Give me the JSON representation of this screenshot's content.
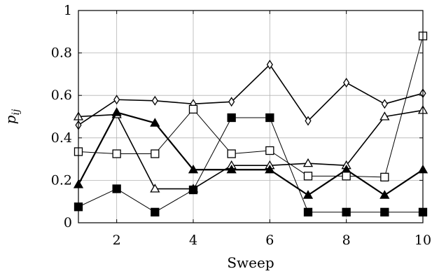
{
  "chart_data": {
    "type": "line",
    "title": "",
    "xlabel": "Sweep",
    "ylabel": "p",
    "ylabel_subscript": "ij",
    "xlim": [
      1,
      10
    ],
    "ylim": [
      0,
      1
    ],
    "x_ticks": [
      2,
      4,
      6,
      8,
      10
    ],
    "x_tick_labels": [
      "2",
      "4",
      "6",
      "8",
      "10"
    ],
    "y_ticks": [
      0,
      0.2,
      0.4,
      0.6,
      0.8,
      1
    ],
    "y_tick_labels": [
      "0",
      "0.2",
      "0.4",
      "0.6",
      "0.8",
      "1"
    ],
    "grid": true,
    "legend": "none",
    "colors": {
      "line": "#000000",
      "grid": "#b3b3b3",
      "fill": "#000000",
      "hollow": "#ffffff"
    },
    "x": [
      1,
      2,
      3,
      4,
      5,
      6,
      7,
      8,
      9,
      10
    ],
    "series": [
      {
        "marker": "diamond-open",
        "line_width": 1.6,
        "values": [
          0.46,
          0.58,
          0.575,
          0.56,
          0.57,
          0.745,
          0.48,
          0.66,
          0.56,
          0.61
        ]
      },
      {
        "marker": "triangle-open",
        "line_width": 1.6,
        "values": [
          0.5,
          0.51,
          0.16,
          0.16,
          0.27,
          0.27,
          0.28,
          0.27,
          0.5,
          0.53
        ]
      },
      {
        "marker": "triangle-filled",
        "line_width": 2.2,
        "values": [
          0.18,
          0.52,
          0.47,
          0.25,
          0.25,
          0.25,
          0.13,
          0.25,
          0.13,
          0.25
        ]
      },
      {
        "marker": "square-open",
        "line_width": 1.0,
        "values": [
          0.335,
          0.325,
          0.325,
          0.535,
          0.325,
          0.34,
          0.22,
          0.22,
          0.215,
          0.88
        ]
      },
      {
        "marker": "square-filled",
        "line_width": 1.0,
        "values": [
          0.075,
          0.16,
          0.05,
          0.155,
          0.495,
          0.495,
          0.05,
          0.05,
          0.05,
          0.05
        ]
      }
    ]
  }
}
